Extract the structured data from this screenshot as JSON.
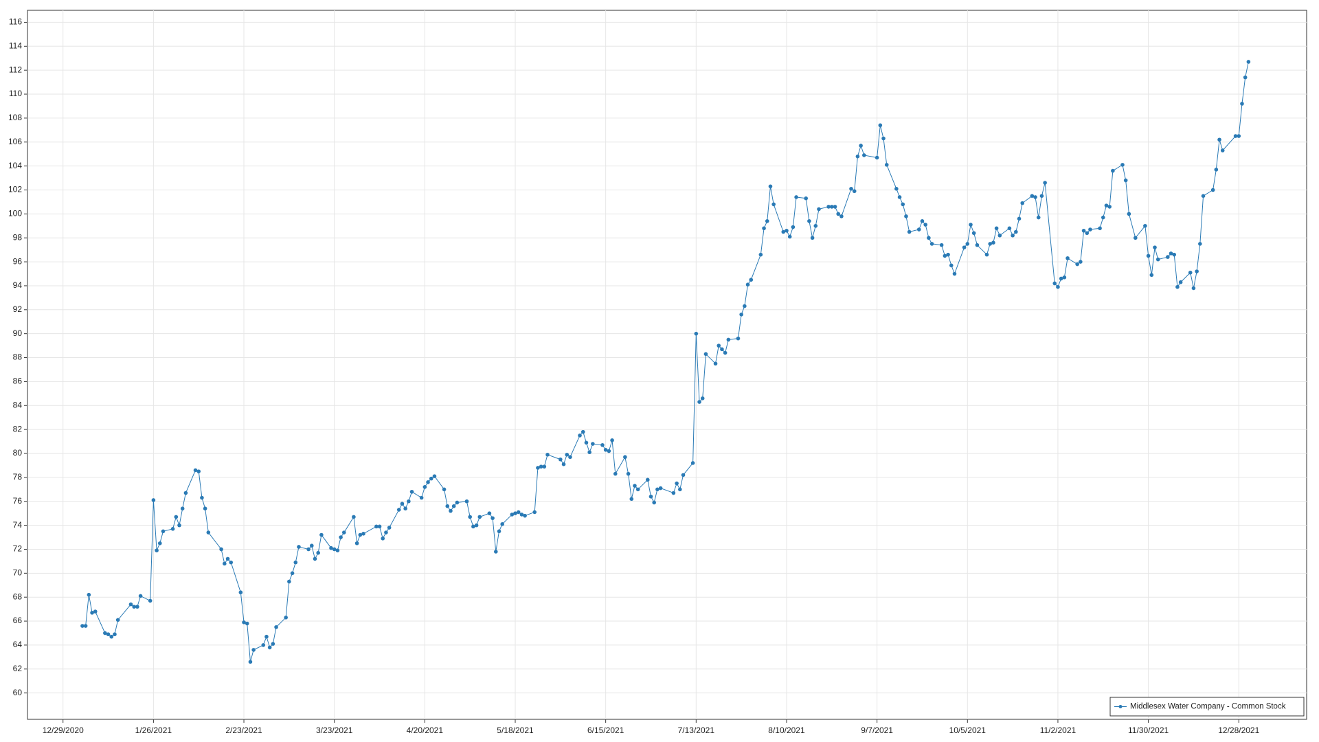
{
  "chart_data": {
    "type": "line",
    "x": [
      "1/4/2021",
      "1/5/2021",
      "1/6/2021",
      "1/7/2021",
      "1/8/2021",
      "1/11/2021",
      "1/12/2021",
      "1/13/2021",
      "1/14/2021",
      "1/15/2021",
      "1/19/2021",
      "1/20/2021",
      "1/21/2021",
      "1/22/2021",
      "1/25/2021",
      "1/26/2021",
      "1/27/2021",
      "1/28/2021",
      "1/29/2021",
      "2/1/2021",
      "2/2/2021",
      "2/3/2021",
      "2/4/2021",
      "2/5/2021",
      "2/8/2021",
      "2/9/2021",
      "2/10/2021",
      "2/11/2021",
      "2/12/2021",
      "2/16/2021",
      "2/17/2021",
      "2/18/2021",
      "2/19/2021",
      "2/22/2021",
      "2/23/2021",
      "2/24/2021",
      "2/25/2021",
      "2/26/2021",
      "3/1/2021",
      "3/2/2021",
      "3/3/2021",
      "3/4/2021",
      "3/5/2021",
      "3/8/2021",
      "3/9/2021",
      "3/10/2021",
      "3/11/2021",
      "3/12/2021",
      "3/15/2021",
      "3/16/2021",
      "3/17/2021",
      "3/18/2021",
      "3/19/2021",
      "3/22/2021",
      "3/23/2021",
      "3/24/2021",
      "3/25/2021",
      "3/26/2021",
      "3/29/2021",
      "3/30/2021",
      "3/31/2021",
      "4/1/2021",
      "4/5/2021",
      "4/6/2021",
      "4/7/2021",
      "4/8/2021",
      "4/9/2021",
      "4/12/2021",
      "4/13/2021",
      "4/14/2021",
      "4/15/2021",
      "4/16/2021",
      "4/19/2021",
      "4/20/2021",
      "4/21/2021",
      "4/22/2021",
      "4/23/2021",
      "4/26/2021",
      "4/27/2021",
      "4/28/2021",
      "4/29/2021",
      "4/30/2021",
      "5/3/2021",
      "5/4/2021",
      "5/5/2021",
      "5/6/2021",
      "5/7/2021",
      "5/10/2021",
      "5/11/2021",
      "5/12/2021",
      "5/13/2021",
      "5/14/2021",
      "5/17/2021",
      "5/18/2021",
      "5/19/2021",
      "5/20/2021",
      "5/21/2021",
      "5/24/2021",
      "5/25/2021",
      "5/26/2021",
      "5/27/2021",
      "5/28/2021",
      "6/1/2021",
      "6/2/2021",
      "6/3/2021",
      "6/4/2021",
      "6/7/2021",
      "6/8/2021",
      "6/9/2021",
      "6/10/2021",
      "6/11/2021",
      "6/14/2021",
      "6/15/2021",
      "6/16/2021",
      "6/17/2021",
      "6/18/2021",
      "6/21/2021",
      "6/22/2021",
      "6/23/2021",
      "6/24/2021",
      "6/25/2021",
      "6/28/2021",
      "6/29/2021",
      "6/30/2021",
      "7/1/2021",
      "7/2/2021",
      "7/6/2021",
      "7/7/2021",
      "7/8/2021",
      "7/9/2021",
      "7/12/2021",
      "7/13/2021",
      "7/14/2021",
      "7/15/2021",
      "7/16/2021",
      "7/19/2021",
      "7/20/2021",
      "7/21/2021",
      "7/22/2021",
      "7/23/2021",
      "7/26/2021",
      "7/27/2021",
      "7/28/2021",
      "7/29/2021",
      "7/30/2021",
      "8/2/2021",
      "8/3/2021",
      "8/4/2021",
      "8/5/2021",
      "8/6/2021",
      "8/9/2021",
      "8/10/2021",
      "8/11/2021",
      "8/12/2021",
      "8/13/2021",
      "8/16/2021",
      "8/17/2021",
      "8/18/2021",
      "8/19/2021",
      "8/20/2021",
      "8/23/2021",
      "8/24/2021",
      "8/25/2021",
      "8/26/2021",
      "8/27/2021",
      "8/30/2021",
      "8/31/2021",
      "9/1/2021",
      "9/2/2021",
      "9/3/2021",
      "9/7/2021",
      "9/8/2021",
      "9/9/2021",
      "9/10/2021",
      "9/13/2021",
      "9/14/2021",
      "9/15/2021",
      "9/16/2021",
      "9/17/2021",
      "9/20/2021",
      "9/21/2021",
      "9/22/2021",
      "9/23/2021",
      "9/24/2021",
      "9/27/2021",
      "9/28/2021",
      "9/29/2021",
      "9/30/2021",
      "10/1/2021",
      "10/4/2021",
      "10/5/2021",
      "10/6/2021",
      "10/7/2021",
      "10/8/2021",
      "10/11/2021",
      "10/12/2021",
      "10/13/2021",
      "10/14/2021",
      "10/15/2021",
      "10/18/2021",
      "10/19/2021",
      "10/20/2021",
      "10/21/2021",
      "10/22/2021",
      "10/25/2021",
      "10/26/2021",
      "10/27/2021",
      "10/28/2021",
      "10/29/2021",
      "11/1/2021",
      "11/2/2021",
      "11/3/2021",
      "11/4/2021",
      "11/5/2021",
      "11/8/2021",
      "11/9/2021",
      "11/10/2021",
      "11/11/2021",
      "11/12/2021",
      "11/15/2021",
      "11/16/2021",
      "11/17/2021",
      "11/18/2021",
      "11/19/2021",
      "11/22/2021",
      "11/23/2021",
      "11/24/2021",
      "11/26/2021",
      "11/29/2021",
      "11/30/2021",
      "12/1/2021",
      "12/2/2021",
      "12/3/2021",
      "12/6/2021",
      "12/7/2021",
      "12/8/2021",
      "12/9/2021",
      "12/10/2021",
      "12/13/2021",
      "12/14/2021",
      "12/15/2021",
      "12/16/2021",
      "12/17/2021",
      "12/20/2021",
      "12/21/2021",
      "12/22/2021",
      "12/23/2021",
      "12/27/2021",
      "12/28/2021",
      "12/29/2021",
      "12/30/2021",
      "12/31/2021"
    ],
    "series": [
      {
        "name": "Middlesex Water Company - Common Stock",
        "color": "#2a7ab5",
        "values": [
          65.6,
          65.6,
          68.2,
          66.7,
          66.8,
          65.0,
          64.9,
          64.7,
          64.9,
          66.1,
          67.4,
          67.2,
          67.2,
          68.1,
          67.7,
          76.1,
          71.9,
          72.5,
          73.5,
          73.7,
          74.7,
          74.0,
          75.4,
          76.7,
          78.6,
          78.5,
          76.3,
          75.4,
          73.4,
          72.0,
          70.8,
          71.2,
          70.9,
          68.4,
          65.9,
          65.8,
          62.6,
          63.6,
          64.0,
          64.7,
          63.8,
          64.1,
          65.5,
          66.3,
          69.3,
          70.0,
          70.9,
          72.2,
          72.0,
          72.3,
          71.2,
          71.7,
          73.2,
          72.1,
          72.0,
          71.9,
          73.0,
          73.4,
          74.7,
          72.5,
          73.2,
          73.3,
          73.9,
          73.9,
          72.9,
          73.4,
          73.8,
          75.3,
          75.8,
          75.4,
          76.0,
          76.8,
          76.3,
          77.2,
          77.6,
          77.9,
          78.1,
          77.0,
          75.6,
          75.2,
          75.6,
          75.9,
          76.0,
          74.7,
          73.9,
          74.0,
          74.7,
          75.0,
          74.6,
          71.8,
          73.5,
          74.1,
          74.9,
          75.0,
          75.1,
          74.9,
          74.8,
          75.1,
          78.8,
          78.9,
          78.9,
          79.9,
          79.5,
          79.1,
          79.9,
          79.7,
          81.5,
          81.8,
          80.9,
          80.1,
          80.8,
          80.7,
          80.3,
          80.2,
          81.1,
          78.3,
          79.7,
          78.3,
          76.2,
          77.3,
          77.0,
          77.8,
          76.4,
          75.9,
          77.0,
          77.1,
          76.7,
          77.5,
          77.0,
          78.2,
          79.2,
          90.0,
          84.3,
          84.6,
          88.3,
          87.5,
          89.0,
          88.7,
          88.4,
          89.5,
          89.6,
          91.6,
          92.3,
          94.1,
          94.5,
          96.6,
          98.8,
          99.4,
          102.3,
          100.8,
          98.5,
          98.6,
          98.1,
          98.9,
          101.4,
          101.3,
          99.4,
          98.0,
          99.0,
          100.4,
          100.6,
          100.6,
          100.6,
          100.0,
          99.8,
          102.1,
          101.9,
          104.8,
          105.7,
          104.9,
          104.7,
          107.4,
          106.3,
          104.1,
          102.1,
          101.4,
          100.8,
          99.8,
          98.5,
          98.7,
          99.4,
          99.1,
          98.0,
          97.5,
          97.4,
          96.5,
          96.6,
          95.7,
          95.0,
          97.2,
          97.5,
          99.1,
          98.4,
          97.4,
          96.6,
          97.5,
          97.6,
          98.8,
          98.2,
          98.8,
          98.2,
          98.5,
          99.6,
          100.9,
          101.5,
          101.4,
          99.7,
          101.5,
          102.6,
          94.2,
          93.9,
          94.6,
          94.7,
          96.3,
          95.8,
          96.0,
          98.6,
          98.4,
          98.7,
          98.8,
          99.7,
          100.7,
          100.6,
          103.6,
          104.1,
          102.8,
          100.0,
          98.0,
          99.0,
          96.5,
          94.9,
          97.2,
          96.2,
          96.4,
          96.7,
          96.6,
          93.9,
          94.3,
          95.1,
          93.8,
          95.2,
          97.5,
          101.5,
          102.0,
          103.7,
          106.2,
          105.3,
          106.5,
          106.5,
          109.2,
          111.4,
          112.7
        ]
      }
    ],
    "xlim": [
      "12/18/2020",
      "1/18/2022"
    ],
    "xticks": [
      "12/29/2020",
      "1/26/2021",
      "2/23/2021",
      "3/23/2021",
      "4/20/2021",
      "5/18/2021",
      "6/15/2021",
      "7/13/2021",
      "8/10/2021",
      "9/7/2021",
      "10/5/2021",
      "11/2/2021",
      "11/30/2021",
      "12/28/2021"
    ],
    "ylim": [
      57.8,
      117
    ],
    "yticks": [
      60,
      62,
      64,
      66,
      68,
      70,
      72,
      74,
      76,
      78,
      80,
      82,
      84,
      86,
      88,
      90,
      92,
      94,
      96,
      98,
      100,
      102,
      104,
      106,
      108,
      110,
      112,
      114,
      116
    ],
    "grid": true,
    "legend": "lower right"
  }
}
